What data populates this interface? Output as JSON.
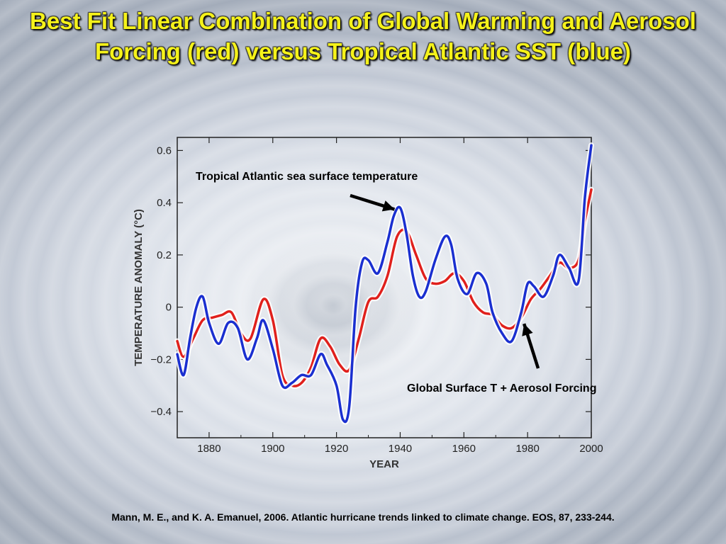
{
  "slide": {
    "title": "Best Fit Linear Combination of Global Warming and Aerosol Forcing (red) versus Tropical Atlantic SST (blue)",
    "citation": "Mann, M. E., and K. A. Emanuel, 2006. Atlantic hurricane trends linked to climate change. EOS, 87, 233-244."
  },
  "chart_data": {
    "type": "line",
    "title": "",
    "xlabel": "YEAR",
    "ylabel": "TEMPERATURE ANOMALY (°C)",
    "xlim": [
      1870,
      2000
    ],
    "ylim": [
      -0.5,
      0.65
    ],
    "xticks": [
      1880,
      1900,
      1920,
      1940,
      1960,
      1980,
      2000
    ],
    "yticks": [
      0.6,
      0.4,
      0.2,
      0,
      -0.2,
      -0.4
    ],
    "ytick_labels": [
      "0.6",
      "0.4",
      "0.2",
      "0",
      "−0.2",
      "−0.4"
    ],
    "grid": false,
    "colors": {
      "series_red": "#e0201c",
      "series_blue": "#1a2fd0",
      "glow": "#ffffff"
    },
    "annotations": [
      {
        "text": "Tropical Atlantic sea surface temperature",
        "target_x": 1940,
        "target_y": 0.38
      },
      {
        "text": "Global Surface T + Aerosol Forcing",
        "target_x": 1978,
        "target_y": -0.02
      }
    ],
    "series": [
      {
        "name": "red",
        "x": [
          1870,
          1872,
          1875,
          1878,
          1881,
          1884,
          1887,
          1890,
          1893,
          1897,
          1900,
          1903,
          1906,
          1909,
          1912,
          1915,
          1918,
          1921,
          1924,
          1927,
          1930,
          1933,
          1936,
          1939,
          1942,
          1945,
          1948,
          1951,
          1954,
          1957,
          1960,
          1963,
          1966,
          1969,
          1972,
          1975,
          1978,
          1981,
          1984,
          1987,
          1990,
          1993,
          1996,
          1998,
          2000
        ],
        "y": [
          -0.13,
          -0.19,
          -0.12,
          -0.05,
          -0.04,
          -0.03,
          -0.02,
          -0.1,
          -0.12,
          0.03,
          -0.05,
          -0.26,
          -0.3,
          -0.29,
          -0.23,
          -0.12,
          -0.15,
          -0.22,
          -0.24,
          -0.12,
          0.02,
          0.04,
          0.12,
          0.27,
          0.29,
          0.2,
          0.11,
          0.09,
          0.1,
          0.13,
          0.1,
          0.02,
          -0.02,
          -0.03,
          -0.07,
          -0.08,
          -0.04,
          0.03,
          0.07,
          0.12,
          0.17,
          0.15,
          0.18,
          0.33,
          0.45
        ]
      },
      {
        "name": "blue",
        "x": [
          1870,
          1872,
          1874,
          1876,
          1878,
          1880,
          1883,
          1886,
          1889,
          1892,
          1895,
          1897,
          1900,
          1903,
          1906,
          1909,
          1912,
          1915,
          1917,
          1920,
          1922,
          1924,
          1926,
          1928,
          1930,
          1933,
          1936,
          1938,
          1940,
          1942,
          1944,
          1946,
          1948,
          1951,
          1954,
          1956,
          1958,
          1961,
          1964,
          1967,
          1969,
          1972,
          1975,
          1978,
          1980,
          1982,
          1985,
          1988,
          1990,
          1993,
          1996,
          1998,
          2000
        ],
        "y": [
          -0.18,
          -0.26,
          -0.12,
          0.0,
          0.04,
          -0.06,
          -0.14,
          -0.06,
          -0.08,
          -0.2,
          -0.12,
          -0.05,
          -0.16,
          -0.3,
          -0.29,
          -0.26,
          -0.26,
          -0.18,
          -0.22,
          -0.3,
          -0.43,
          -0.38,
          0.0,
          0.17,
          0.18,
          0.13,
          0.25,
          0.35,
          0.38,
          0.28,
          0.12,
          0.04,
          0.06,
          0.18,
          0.27,
          0.24,
          0.11,
          0.05,
          0.13,
          0.09,
          -0.02,
          -0.1,
          -0.13,
          -0.02,
          0.09,
          0.08,
          0.04,
          0.12,
          0.2,
          0.15,
          0.1,
          0.42,
          0.62
        ]
      }
    ]
  }
}
